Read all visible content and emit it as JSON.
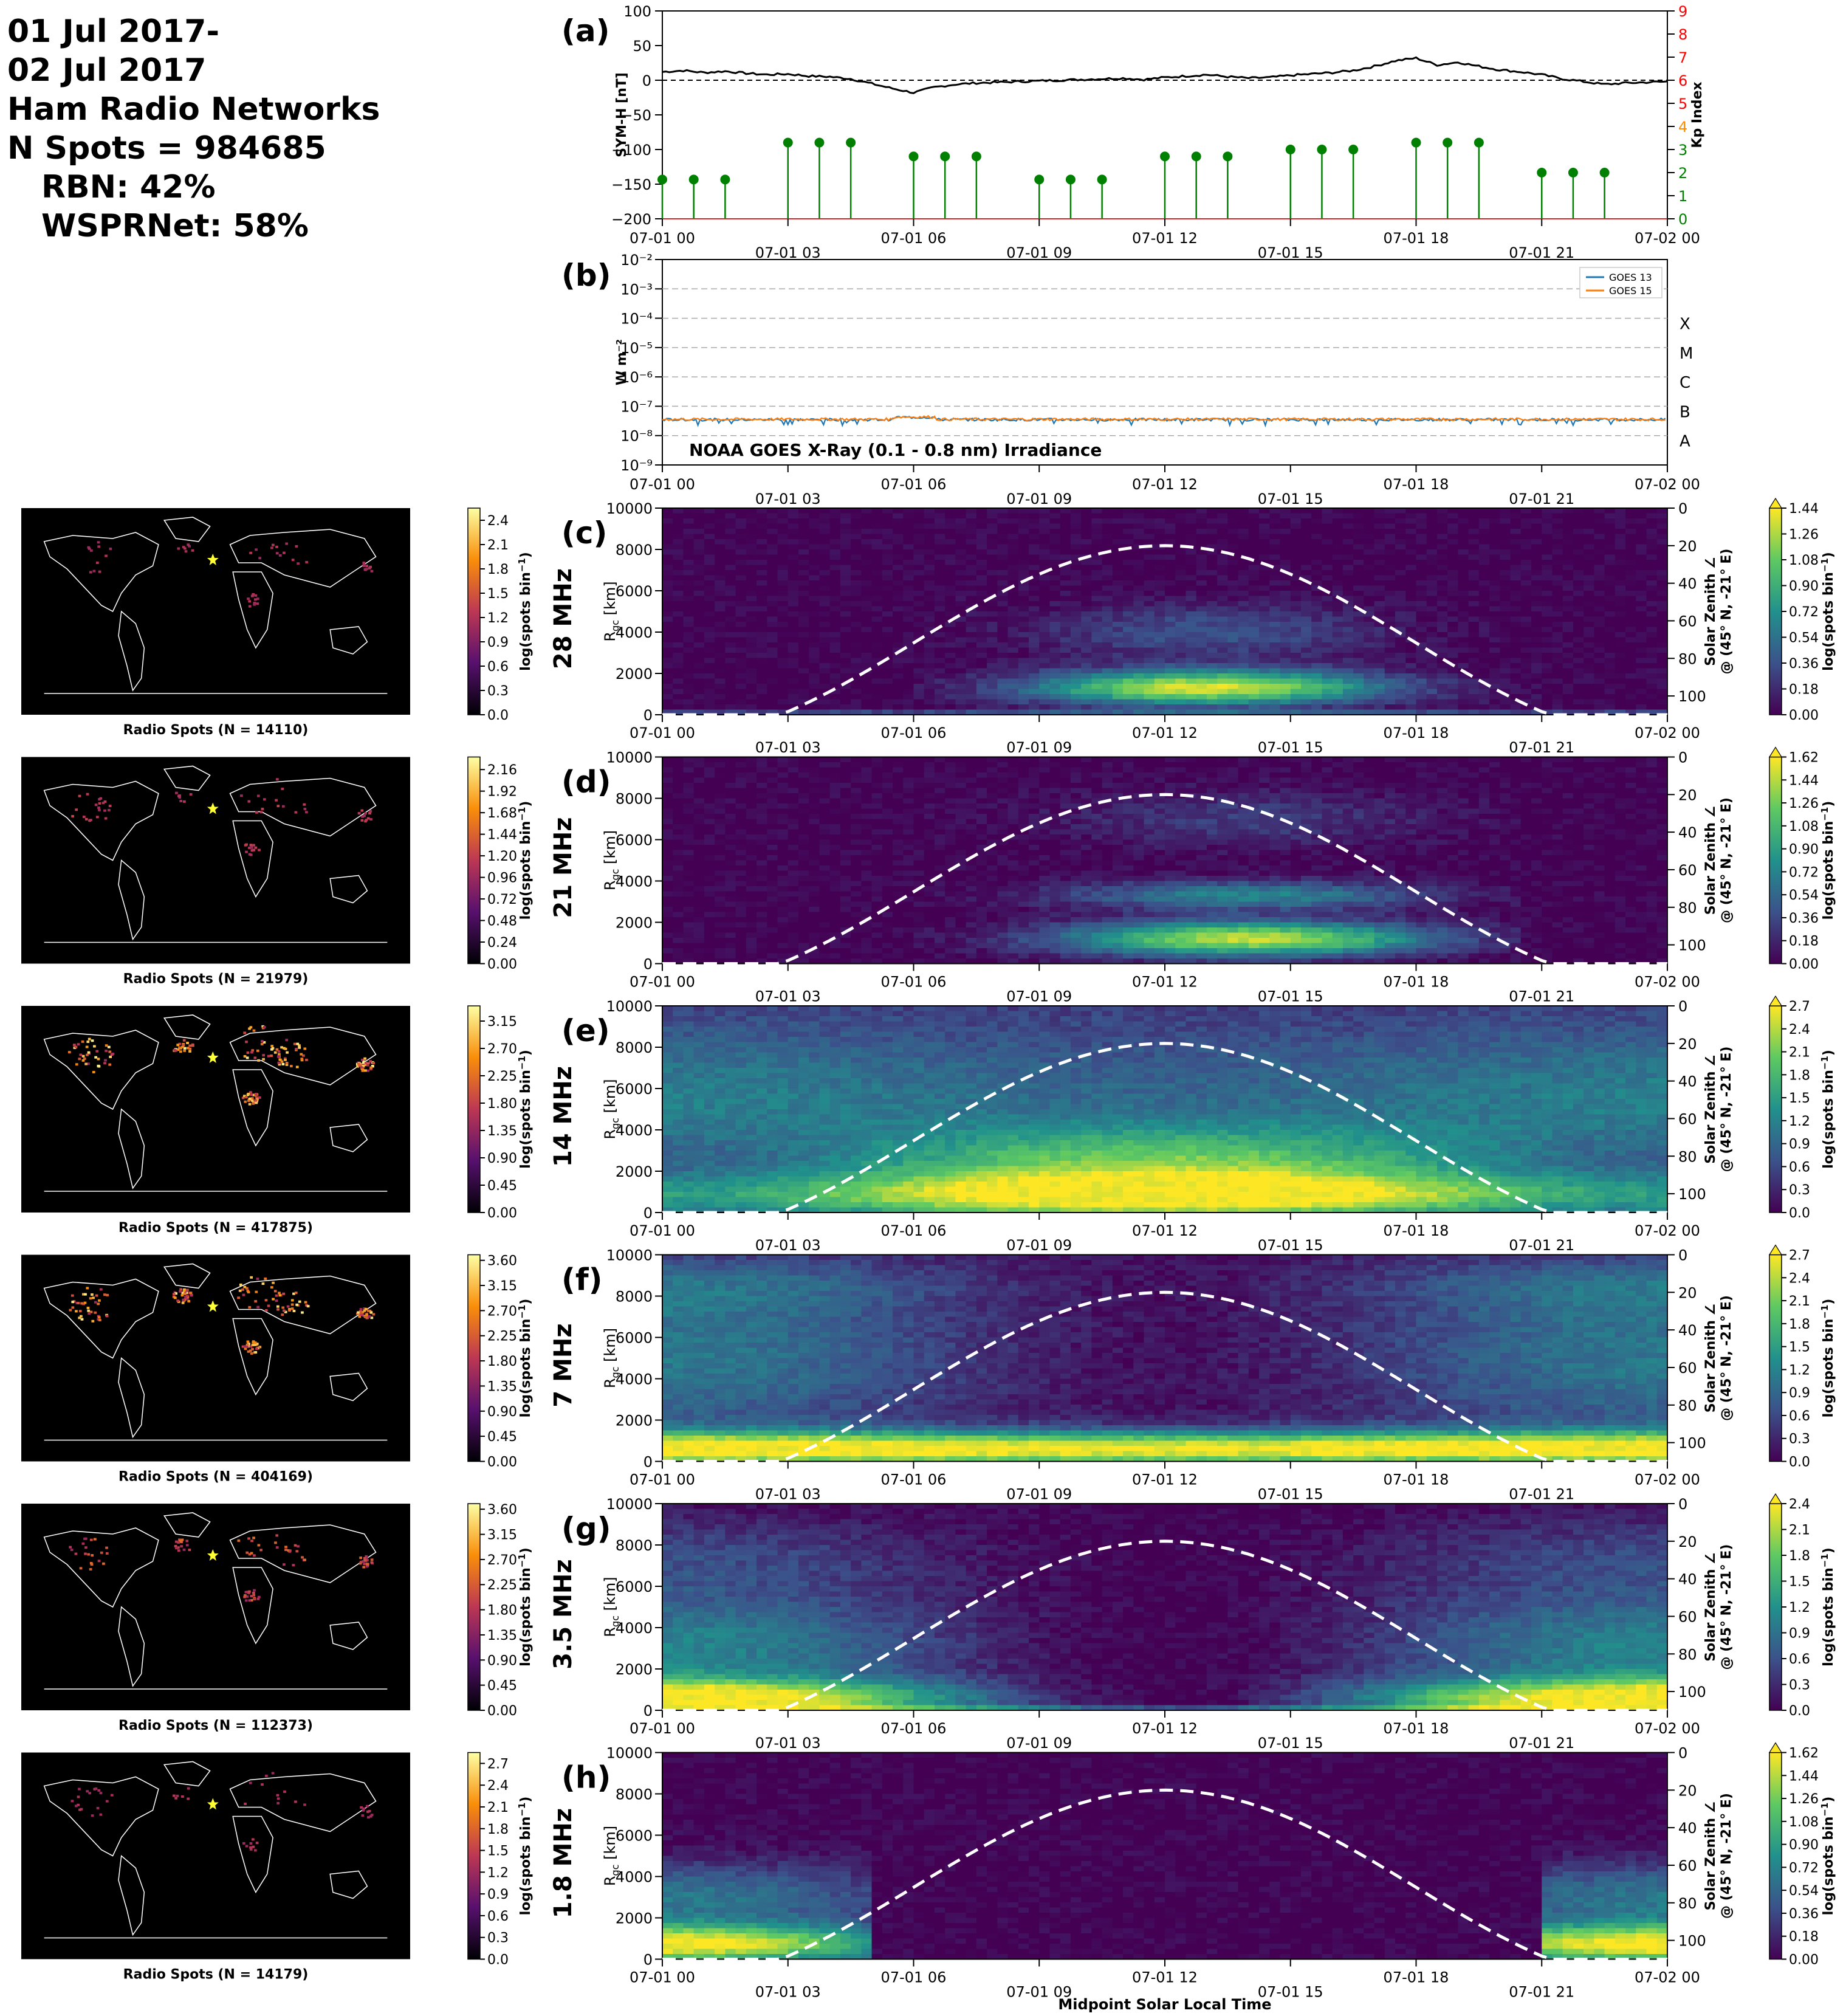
{
  "header": {
    "date_line1": "01 Jul 2017-",
    "date_line2": "02 Jul 2017",
    "network": "Ham Radio Networks",
    "n_spots": "N Spots = 984685",
    "rbn": "RBN: 42%",
    "wsprnet": "WSPRNet: 58%"
  },
  "colors": {
    "symh": "#000000",
    "kp": "#008000",
    "goes13": "#1f77b4",
    "goes15": "#ff7f0e",
    "map_bg": "#000000",
    "coast": "#ffffff",
    "star": "#ffff33",
    "terminator": "#ffffff",
    "kp_red": "#ff0000",
    "kp_orange": "#ff8c00",
    "kp_green": "#008000"
  },
  "time_ticks": [
    "07-01 00",
    "07-01 03",
    "07-01 06",
    "07-01 09",
    "07-01 12",
    "07-01 15",
    "07-01 18",
    "07-01 21",
    "07-02 00"
  ],
  "chart_data": [
    {
      "panel_label": "(a)",
      "type": "line",
      "ylabel": "SYM-H [nT]",
      "ylabel_right": "Kp Index",
      "ylim": [
        -200,
        100
      ],
      "yticks": [
        "100",
        "50",
        "0",
        "−50",
        "−100",
        "−150",
        "−200"
      ],
      "kp_ticks": [
        "0",
        "1",
        "2",
        "3",
        "4",
        "5",
        "6",
        "7",
        "8",
        "9"
      ],
      "kp_tick_colors": [
        "green",
        "green",
        "green",
        "green",
        "orange",
        "red",
        "red",
        "red",
        "red",
        "red"
      ],
      "xlim_hours": [
        0,
        24
      ],
      "symh": {
        "x_hours": [
          0,
          0.5,
          1,
          1.5,
          2,
          2.5,
          3,
          3.5,
          4,
          4.5,
          5,
          5.5,
          6,
          6.5,
          7,
          7.5,
          8,
          8.5,
          9,
          9.5,
          10,
          10.5,
          11,
          11.5,
          12,
          12.5,
          13,
          13.5,
          14,
          14.5,
          15,
          15.5,
          16,
          16.5,
          17,
          17.5,
          18,
          18.5,
          19,
          19.5,
          20,
          20.5,
          21,
          21.5,
          22,
          22.5,
          23,
          23.5,
          24
        ],
        "values": [
          12,
          14,
          11,
          13,
          10,
          8,
          9,
          6,
          5,
          2,
          -5,
          -12,
          -18,
          -10,
          -6,
          -4,
          -3,
          -2,
          -1,
          0,
          1,
          2,
          3,
          1,
          4,
          6,
          8,
          5,
          3,
          4,
          7,
          9,
          11,
          14,
          20,
          28,
          32,
          22,
          26,
          20,
          15,
          12,
          8,
          2,
          -2,
          -6,
          -4,
          -3,
          -2
        ]
      },
      "kp": {
        "x_hours": [
          0,
          0.75,
          1.5,
          3,
          3.75,
          4.5,
          6,
          6.75,
          7.5,
          9,
          9.75,
          10.5,
          12,
          12.75,
          13.5,
          15,
          15.75,
          16.5,
          18,
          18.75,
          19.5,
          21,
          21.75,
          22.5
        ],
        "values": [
          1.7,
          1.7,
          1.7,
          3.3,
          3.3,
          3.3,
          2.7,
          2.7,
          2.7,
          1.7,
          1.7,
          1.7,
          2.7,
          2.7,
          2.7,
          3.0,
          3.0,
          3.0,
          3.3,
          3.3,
          3.3,
          2.0,
          2.0,
          2.0
        ]
      }
    },
    {
      "panel_label": "(b)",
      "type": "line",
      "ylabel": "W m⁻²",
      "ylim_log10": [
        -9,
        -2
      ],
      "yticks": [
        "10⁻²",
        "10⁻³",
        "10⁻⁴",
        "10⁻⁵",
        "10⁻⁶",
        "10⁻⁷",
        "10⁻⁸",
        "10⁻⁹"
      ],
      "flare_classes": [
        "X",
        "M",
        "C",
        "B",
        "A"
      ],
      "annotation": "NOAA GOES X-Ray (0.1 - 0.8 nm) Irradiance",
      "series": [
        {
          "name": "GOES 13",
          "mean": 3.5e-08
        },
        {
          "name": "GOES 15",
          "mean": 3.6e-08
        }
      ]
    }
  ],
  "bands": [
    {
      "label": "(c)",
      "freq": "28 MHz",
      "map_title": "Radio Spots (N = 14110)",
      "cbar_ticks": [
        "2.4",
        "2.1",
        "1.8",
        "1.5",
        "1.2",
        "0.9",
        "0.6",
        "0.3",
        "0.0"
      ],
      "right_ticks": [
        "1.44",
        "1.26",
        "1.08",
        "0.90",
        "0.72",
        "0.54",
        "0.36",
        "0.18",
        "0.00"
      ],
      "vmax": 2.55,
      "rvmax": 1.44,
      "map_density": 0.15,
      "pattern": "day_high"
    },
    {
      "label": "(d)",
      "freq": "21 MHz",
      "map_title": "Radio Spots (N = 21979)",
      "cbar_ticks": [
        "2.16",
        "1.92",
        "1.68",
        "1.44",
        "1.20",
        "0.96",
        "0.72",
        "0.48",
        "0.24",
        "0.00"
      ],
      "right_ticks": [
        "1.62",
        "1.44",
        "1.26",
        "1.08",
        "0.90",
        "0.72",
        "0.54",
        "0.36",
        "0.18",
        "0.00"
      ],
      "vmax": 2.3,
      "rvmax": 1.62,
      "map_density": 0.25,
      "pattern": "day_mid"
    },
    {
      "label": "(e)",
      "freq": "14 MHz",
      "map_title": "Radio Spots (N = 417875)",
      "cbar_ticks": [
        "3.15",
        "2.70",
        "2.25",
        "1.80",
        "1.35",
        "0.90",
        "0.45",
        "0.00"
      ],
      "right_ticks": [
        "2.7",
        "2.4",
        "2.1",
        "1.8",
        "1.5",
        "1.2",
        "0.9",
        "0.6",
        "0.3",
        "0.0"
      ],
      "vmax": 3.4,
      "rvmax": 2.7,
      "map_density": 1.0,
      "pattern": "broad"
    },
    {
      "label": "(f)",
      "freq": "7 MHz",
      "map_title": "Radio Spots (N = 404169)",
      "cbar_ticks": [
        "3.60",
        "3.15",
        "2.70",
        "2.25",
        "1.80",
        "1.35",
        "0.90",
        "0.45",
        "0.00"
      ],
      "right_ticks": [
        "2.7",
        "2.4",
        "2.1",
        "1.8",
        "1.5",
        "1.2",
        "0.9",
        "0.6",
        "0.3",
        "0.0"
      ],
      "vmax": 3.7,
      "rvmax": 2.7,
      "map_density": 0.95,
      "pattern": "night_far"
    },
    {
      "label": "(g)",
      "freq": "3.5 MHz",
      "map_title": "Radio Spots (N = 112373)",
      "cbar_ticks": [
        "3.60",
        "3.15",
        "2.70",
        "2.25",
        "1.80",
        "1.35",
        "0.90",
        "0.45",
        "0.00"
      ],
      "right_ticks": [
        "2.4",
        "2.1",
        "1.8",
        "1.5",
        "1.2",
        "0.9",
        "0.6",
        "0.3",
        "0.0"
      ],
      "vmax": 3.7,
      "rvmax": 2.4,
      "map_density": 0.45,
      "pattern": "night"
    },
    {
      "label": "(h)",
      "freq": "1.8 MHz",
      "map_title": "Radio Spots (N = 14179)",
      "cbar_ticks": [
        "2.7",
        "2.4",
        "2.1",
        "1.8",
        "1.5",
        "1.2",
        "0.9",
        "0.6",
        "0.3",
        "0.0"
      ],
      "right_ticks": [
        "1.62",
        "1.44",
        "1.26",
        "1.08",
        "0.90",
        "0.72",
        "0.54",
        "0.36",
        "0.18",
        "0.00"
      ],
      "vmax": 2.85,
      "rvmax": 1.62,
      "map_density": 0.15,
      "pattern": "night_low"
    }
  ],
  "axes": {
    "rgc_label": "R",
    "rgc_sub": "gc",
    "rgc_unit": " [km]",
    "rgc_ticks": [
      "10000",
      "8000",
      "6000",
      "4000",
      "2000",
      "0"
    ],
    "sza_line1": "Solar Zenith ∠",
    "sza_line2": "@ (45° N, -21° E)",
    "sza_ticks": [
      "0",
      "20",
      "40",
      "60",
      "80",
      "100"
    ],
    "cbar_label": "log(spots bin",
    "cbar_sup": "−1",
    "cbar_close": ")",
    "xlabel": "Midpoint Solar Local Time"
  }
}
